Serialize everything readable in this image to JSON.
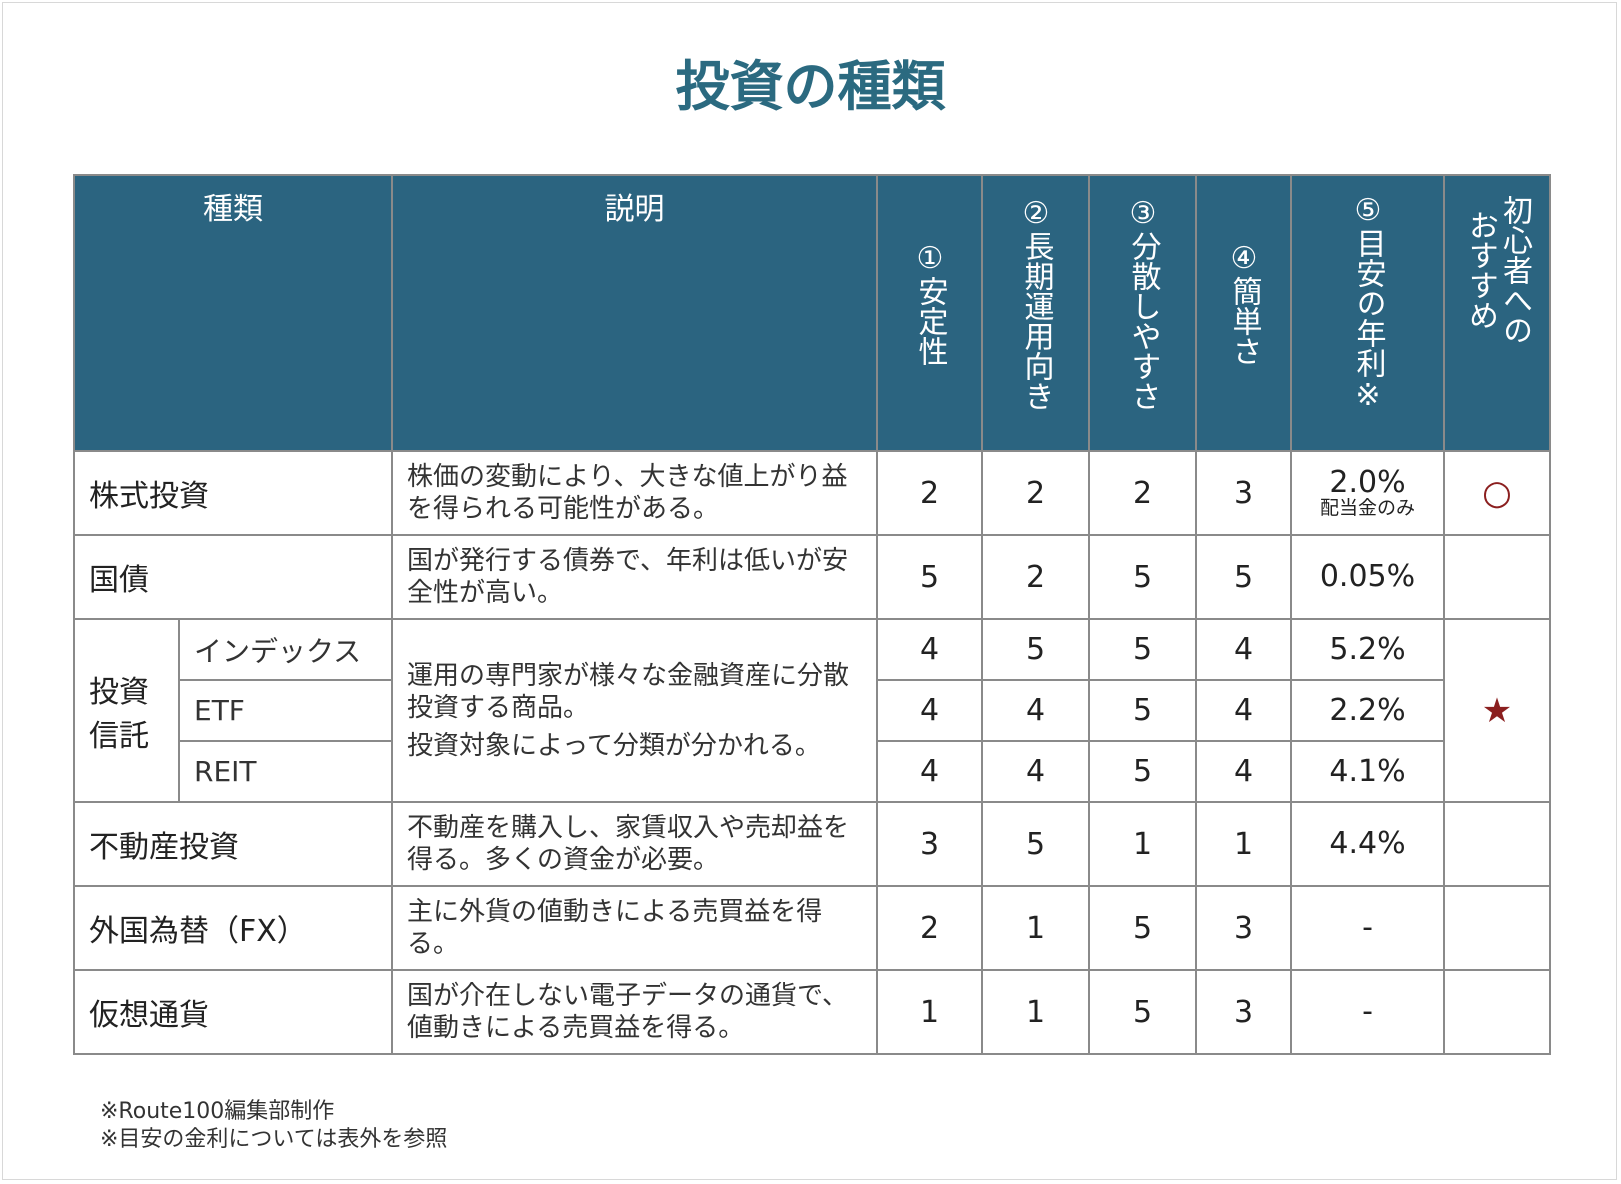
{
  "title": "投資の種類",
  "table": {
    "columns": [
      "種類",
      "説明",
      "①安定性",
      "②長期運用向き",
      "③分散しやすさ",
      "④簡単さ",
      "⑤目安の年利※",
      "初心者へのおすすめ"
    ],
    "rows": [
      {
        "type": "株式投資",
        "description": [
          "株価の変動により、大きな値上がり益を得られる可能性がある。"
        ],
        "scores": [
          2,
          2,
          2,
          3
        ],
        "yield": "2.0%",
        "yield_note": "配当金のみ",
        "recommend": "○"
      },
      {
        "type": "国債",
        "description": [
          "国が発行する債券で、年利は低いが安全性が高い。"
        ],
        "scores": [
          5,
          2,
          5,
          5
        ],
        "yield": "0.05%"
      },
      {
        "type": "投資信託",
        "description": [
          "運用の専門家が様々な金融資産に分散投資する商品。",
          "投資対象によって分類が分かれる。"
        ],
        "recommend": "★",
        "subrows": [
          {
            "type": "インデックス",
            "scores": [
              4,
              5,
              5,
              4
            ],
            "yield": "5.2%"
          },
          {
            "type": "ETF",
            "scores": [
              4,
              4,
              5,
              4
            ],
            "yield": "2.2%"
          },
          {
            "type": "REIT",
            "scores": [
              4,
              4,
              5,
              4
            ],
            "yield": "4.1%"
          }
        ]
      },
      {
        "type": "不動産投資",
        "description": [
          "不動産を購入し、家賃収入や売却益を得る。多くの資金が必要。"
        ],
        "scores": [
          3,
          5,
          1,
          1
        ],
        "yield": "4.4%"
      },
      {
        "type": "外国為替（FX）",
        "description": [
          "主に外貨の値動きによる売買益を得る。"
        ],
        "scores": [
          2,
          1,
          5,
          3
        ],
        "yield": "-"
      },
      {
        "type": "仮想通貨",
        "description": [
          "国が介在しない電子データの通貨で、値動きによる売買益を得る。"
        ],
        "scores": [
          1,
          1,
          5,
          3
        ],
        "yield": "-"
      }
    ]
  },
  "notes": [
    "※Route100編集部制作",
    "※目安の金利については表外を参照"
  ]
}
